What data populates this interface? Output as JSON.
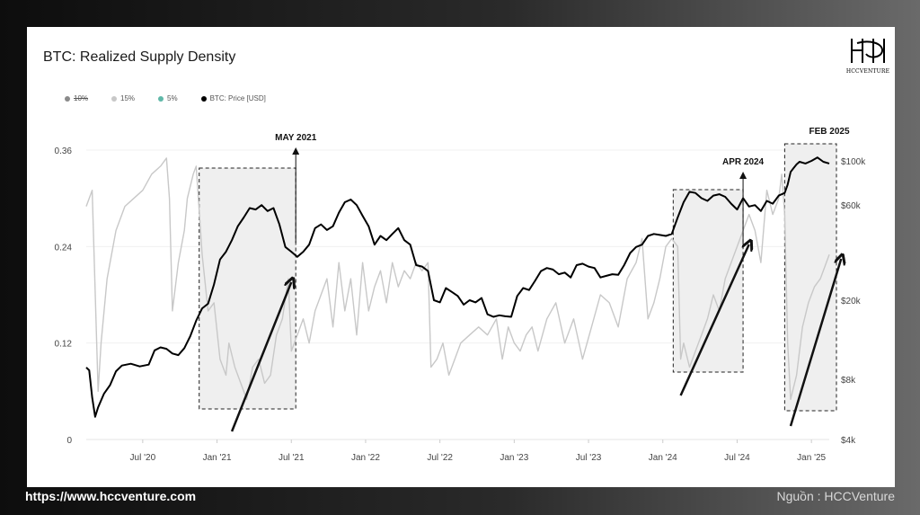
{
  "title": "BTC: Realized Supply Density",
  "logo_text": "HCCVENTURE",
  "footer": {
    "url": "https://www.hccventure.com",
    "source": "Nguồn : HCCVenture"
  },
  "legend": [
    {
      "label": "10%",
      "color": "#8a8a8a",
      "strike": true
    },
    {
      "label": "15%",
      "color": "#c8c8c8",
      "strike": false
    },
    {
      "label": "5%",
      "color": "#5fb8a8",
      "strike": false
    },
    {
      "label": "BTC: Price [USD]",
      "color": "#000000",
      "strike": false
    }
  ],
  "annotations": [
    "MAY 2021",
    "APR 2024",
    "FEB 2025"
  ],
  "chart_data": {
    "type": "line",
    "title": "BTC: Realized Supply Density",
    "x_ticks": [
      "Jul '20",
      "Jan '21",
      "Jul '21",
      "Jan '22",
      "Jul '22",
      "Jan '23",
      "Jul '23",
      "Jan '24",
      "Jul '24",
      "Jan '25"
    ],
    "x_tick_t": [
      2020.5,
      2021.0,
      2021.5,
      2022.0,
      2022.5,
      2023.0,
      2023.5,
      2024.0,
      2024.5,
      2025.0
    ],
    "x_range": [
      2020.12,
      2025.12
    ],
    "y_left_ticks": [
      "0",
      "0.12",
      "0.24",
      "0.36"
    ],
    "y_left_range": [
      0,
      0.36
    ],
    "y_right_ticks": [
      "$4k",
      "$8k",
      "$20k",
      "$60k",
      "$100k"
    ],
    "y_right_values": [
      4000,
      8000,
      20000,
      60000,
      100000
    ],
    "y_right_scale": "log",
    "y_right_range": [
      4000,
      100000
    ],
    "series": [
      {
        "name": "15%",
        "axis": "left",
        "color": "#c8c8c8",
        "points": [
          [
            2020.12,
            0.29
          ],
          [
            2020.16,
            0.31
          ],
          [
            2020.2,
            0.06
          ],
          [
            2020.22,
            0.12
          ],
          [
            2020.26,
            0.2
          ],
          [
            2020.32,
            0.26
          ],
          [
            2020.38,
            0.29
          ],
          [
            2020.44,
            0.3
          ],
          [
            2020.5,
            0.31
          ],
          [
            2020.56,
            0.33
          ],
          [
            2020.62,
            0.34
          ],
          [
            2020.66,
            0.35
          ],
          [
            2020.68,
            0.3
          ],
          [
            2020.7,
            0.16
          ],
          [
            2020.74,
            0.22
          ],
          [
            2020.78,
            0.26
          ],
          [
            2020.8,
            0.3
          ],
          [
            2020.84,
            0.33
          ],
          [
            2020.86,
            0.34
          ],
          [
            2020.9,
            0.23
          ],
          [
            2020.94,
            0.16
          ],
          [
            2020.98,
            0.17
          ],
          [
            2021.02,
            0.1
          ],
          [
            2021.06,
            0.08
          ],
          [
            2021.08,
            0.12
          ],
          [
            2021.12,
            0.09
          ],
          [
            2021.16,
            0.07
          ],
          [
            2021.2,
            0.05
          ],
          [
            2021.24,
            0.09
          ],
          [
            2021.28,
            0.1
          ],
          [
            2021.32,
            0.07
          ],
          [
            2021.36,
            0.08
          ],
          [
            2021.4,
            0.13
          ],
          [
            2021.44,
            0.15
          ],
          [
            2021.48,
            0.2
          ],
          [
            2021.5,
            0.11
          ],
          [
            2021.54,
            0.13
          ],
          [
            2021.58,
            0.15
          ],
          [
            2021.62,
            0.12
          ],
          [
            2021.66,
            0.16
          ],
          [
            2021.7,
            0.18
          ],
          [
            2021.74,
            0.2
          ],
          [
            2021.78,
            0.14
          ],
          [
            2021.82,
            0.22
          ],
          [
            2021.86,
            0.16
          ],
          [
            2021.9,
            0.2
          ],
          [
            2021.94,
            0.13
          ],
          [
            2021.98,
            0.22
          ],
          [
            2022.02,
            0.16
          ],
          [
            2022.06,
            0.19
          ],
          [
            2022.1,
            0.21
          ],
          [
            2022.14,
            0.17
          ],
          [
            2022.18,
            0.22
          ],
          [
            2022.22,
            0.19
          ],
          [
            2022.26,
            0.21
          ],
          [
            2022.3,
            0.2
          ],
          [
            2022.34,
            0.22
          ],
          [
            2022.38,
            0.21
          ],
          [
            2022.42,
            0.22
          ],
          [
            2022.44,
            0.09
          ],
          [
            2022.48,
            0.1
          ],
          [
            2022.52,
            0.12
          ],
          [
            2022.56,
            0.08
          ],
          [
            2022.6,
            0.1
          ],
          [
            2022.64,
            0.12
          ],
          [
            2022.7,
            0.13
          ],
          [
            2022.76,
            0.14
          ],
          [
            2022.82,
            0.13
          ],
          [
            2022.88,
            0.15
          ],
          [
            2022.92,
            0.1
          ],
          [
            2022.96,
            0.14
          ],
          [
            2023.0,
            0.12
          ],
          [
            2023.04,
            0.11
          ],
          [
            2023.08,
            0.13
          ],
          [
            2023.12,
            0.14
          ],
          [
            2023.16,
            0.11
          ],
          [
            2023.22,
            0.15
          ],
          [
            2023.28,
            0.17
          ],
          [
            2023.34,
            0.12
          ],
          [
            2023.4,
            0.15
          ],
          [
            2023.46,
            0.1
          ],
          [
            2023.52,
            0.14
          ],
          [
            2023.58,
            0.18
          ],
          [
            2023.64,
            0.17
          ],
          [
            2023.7,
            0.14
          ],
          [
            2023.76,
            0.2
          ],
          [
            2023.82,
            0.22
          ],
          [
            2023.86,
            0.25
          ],
          [
            2023.9,
            0.15
          ],
          [
            2023.94,
            0.17
          ],
          [
            2023.98,
            0.2
          ],
          [
            2024.02,
            0.24
          ],
          [
            2024.06,
            0.25
          ],
          [
            2024.1,
            0.24
          ],
          [
            2024.12,
            0.1
          ],
          [
            2024.14,
            0.12
          ],
          [
            2024.18,
            0.09
          ],
          [
            2024.22,
            0.11
          ],
          [
            2024.26,
            0.13
          ],
          [
            2024.3,
            0.15
          ],
          [
            2024.34,
            0.18
          ],
          [
            2024.38,
            0.16
          ],
          [
            2024.42,
            0.2
          ],
          [
            2024.46,
            0.22
          ],
          [
            2024.5,
            0.24
          ],
          [
            2024.54,
            0.26
          ],
          [
            2024.58,
            0.28
          ],
          [
            2024.62,
            0.26
          ],
          [
            2024.66,
            0.22
          ],
          [
            2024.7,
            0.31
          ],
          [
            2024.74,
            0.28
          ],
          [
            2024.78,
            0.3
          ],
          [
            2024.8,
            0.33
          ],
          [
            2024.82,
            0.28
          ],
          [
            2024.84,
            0.12
          ],
          [
            2024.86,
            0.05
          ],
          [
            2024.9,
            0.08
          ],
          [
            2024.94,
            0.14
          ],
          [
            2024.98,
            0.17
          ],
          [
            2025.02,
            0.19
          ],
          [
            2025.06,
            0.2
          ],
          [
            2025.1,
            0.22
          ],
          [
            2025.12,
            0.23
          ]
        ]
      },
      {
        "name": "BTC: Price [USD]",
        "axis": "right",
        "color": "#000000",
        "points": [
          [
            2020.12,
            9200
          ],
          [
            2020.14,
            8900
          ],
          [
            2020.16,
            6500
          ],
          [
            2020.18,
            5200
          ],
          [
            2020.2,
            5800
          ],
          [
            2020.24,
            6800
          ],
          [
            2020.28,
            7500
          ],
          [
            2020.32,
            8800
          ],
          [
            2020.36,
            9400
          ],
          [
            2020.42,
            9600
          ],
          [
            2020.48,
            9300
          ],
          [
            2020.54,
            9500
          ],
          [
            2020.58,
            11200
          ],
          [
            2020.62,
            11600
          ],
          [
            2020.66,
            11400
          ],
          [
            2020.7,
            10800
          ],
          [
            2020.74,
            10600
          ],
          [
            2020.78,
            11500
          ],
          [
            2020.82,
            13200
          ],
          [
            2020.86,
            15800
          ],
          [
            2020.9,
            18200
          ],
          [
            2020.94,
            19200
          ],
          [
            2020.98,
            24000
          ],
          [
            2021.02,
            32000
          ],
          [
            2021.06,
            35000
          ],
          [
            2021.1,
            40000
          ],
          [
            2021.14,
            47000
          ],
          [
            2021.18,
            52000
          ],
          [
            2021.22,
            58000
          ],
          [
            2021.26,
            57000
          ],
          [
            2021.3,
            60000
          ],
          [
            2021.34,
            56000
          ],
          [
            2021.38,
            58000
          ],
          [
            2021.42,
            48000
          ],
          [
            2021.46,
            37000
          ],
          [
            2021.5,
            35000
          ],
          [
            2021.54,
            33000
          ],
          [
            2021.58,
            35000
          ],
          [
            2021.62,
            38000
          ],
          [
            2021.66,
            46000
          ],
          [
            2021.7,
            48000
          ],
          [
            2021.74,
            45000
          ],
          [
            2021.78,
            47000
          ],
          [
            2021.82,
            55000
          ],
          [
            2021.86,
            62000
          ],
          [
            2021.9,
            64000
          ],
          [
            2021.94,
            60000
          ],
          [
            2021.98,
            53000
          ],
          [
            2022.02,
            47000
          ],
          [
            2022.06,
            38000
          ],
          [
            2022.1,
            42000
          ],
          [
            2022.14,
            40000
          ],
          [
            2022.18,
            43000
          ],
          [
            2022.22,
            46000
          ],
          [
            2022.26,
            40000
          ],
          [
            2022.3,
            38000
          ],
          [
            2022.34,
            30000
          ],
          [
            2022.38,
            29500
          ],
          [
            2022.42,
            28000
          ],
          [
            2022.46,
            20000
          ],
          [
            2022.5,
            19500
          ],
          [
            2022.54,
            23000
          ],
          [
            2022.58,
            22000
          ],
          [
            2022.62,
            21000
          ],
          [
            2022.66,
            19000
          ],
          [
            2022.7,
            20000
          ],
          [
            2022.74,
            19500
          ],
          [
            2022.78,
            20500
          ],
          [
            2022.82,
            17000
          ],
          [
            2022.86,
            16500
          ],
          [
            2022.9,
            16800
          ],
          [
            2022.94,
            16600
          ],
          [
            2022.98,
            16500
          ],
          [
            2023.02,
            21000
          ],
          [
            2023.06,
            23000
          ],
          [
            2023.1,
            22500
          ],
          [
            2023.14,
            25000
          ],
          [
            2023.18,
            28000
          ],
          [
            2023.22,
            29000
          ],
          [
            2023.26,
            28500
          ],
          [
            2023.3,
            27000
          ],
          [
            2023.34,
            27500
          ],
          [
            2023.38,
            26000
          ],
          [
            2023.42,
            30000
          ],
          [
            2023.46,
            30500
          ],
          [
            2023.5,
            29500
          ],
          [
            2023.54,
            29000
          ],
          [
            2023.58,
            26000
          ],
          [
            2023.62,
            26500
          ],
          [
            2023.66,
            27000
          ],
          [
            2023.7,
            26800
          ],
          [
            2023.74,
            30000
          ],
          [
            2023.78,
            34500
          ],
          [
            2023.82,
            37000
          ],
          [
            2023.86,
            38000
          ],
          [
            2023.9,
            42000
          ],
          [
            2023.94,
            43000
          ],
          [
            2023.98,
            42500
          ],
          [
            2024.02,
            42000
          ],
          [
            2024.06,
            43000
          ],
          [
            2024.1,
            52000
          ],
          [
            2024.14,
            62000
          ],
          [
            2024.18,
            70000
          ],
          [
            2024.22,
            69000
          ],
          [
            2024.26,
            65000
          ],
          [
            2024.3,
            63000
          ],
          [
            2024.34,
            67000
          ],
          [
            2024.38,
            68000
          ],
          [
            2024.42,
            66000
          ],
          [
            2024.46,
            61000
          ],
          [
            2024.5,
            57000
          ],
          [
            2024.54,
            65000
          ],
          [
            2024.58,
            59000
          ],
          [
            2024.62,
            60000
          ],
          [
            2024.66,
            56000
          ],
          [
            2024.7,
            63000
          ],
          [
            2024.74,
            61000
          ],
          [
            2024.78,
            67000
          ],
          [
            2024.82,
            69000
          ],
          [
            2024.84,
            76000
          ],
          [
            2024.86,
            88000
          ],
          [
            2024.88,
            92000
          ],
          [
            2024.9,
            96000
          ],
          [
            2024.92,
            99000
          ],
          [
            2024.96,
            97000
          ],
          [
            2025.0,
            100000
          ],
          [
            2025.04,
            104000
          ],
          [
            2025.08,
            99000
          ],
          [
            2025.12,
            97000
          ]
        ]
      }
    ]
  }
}
